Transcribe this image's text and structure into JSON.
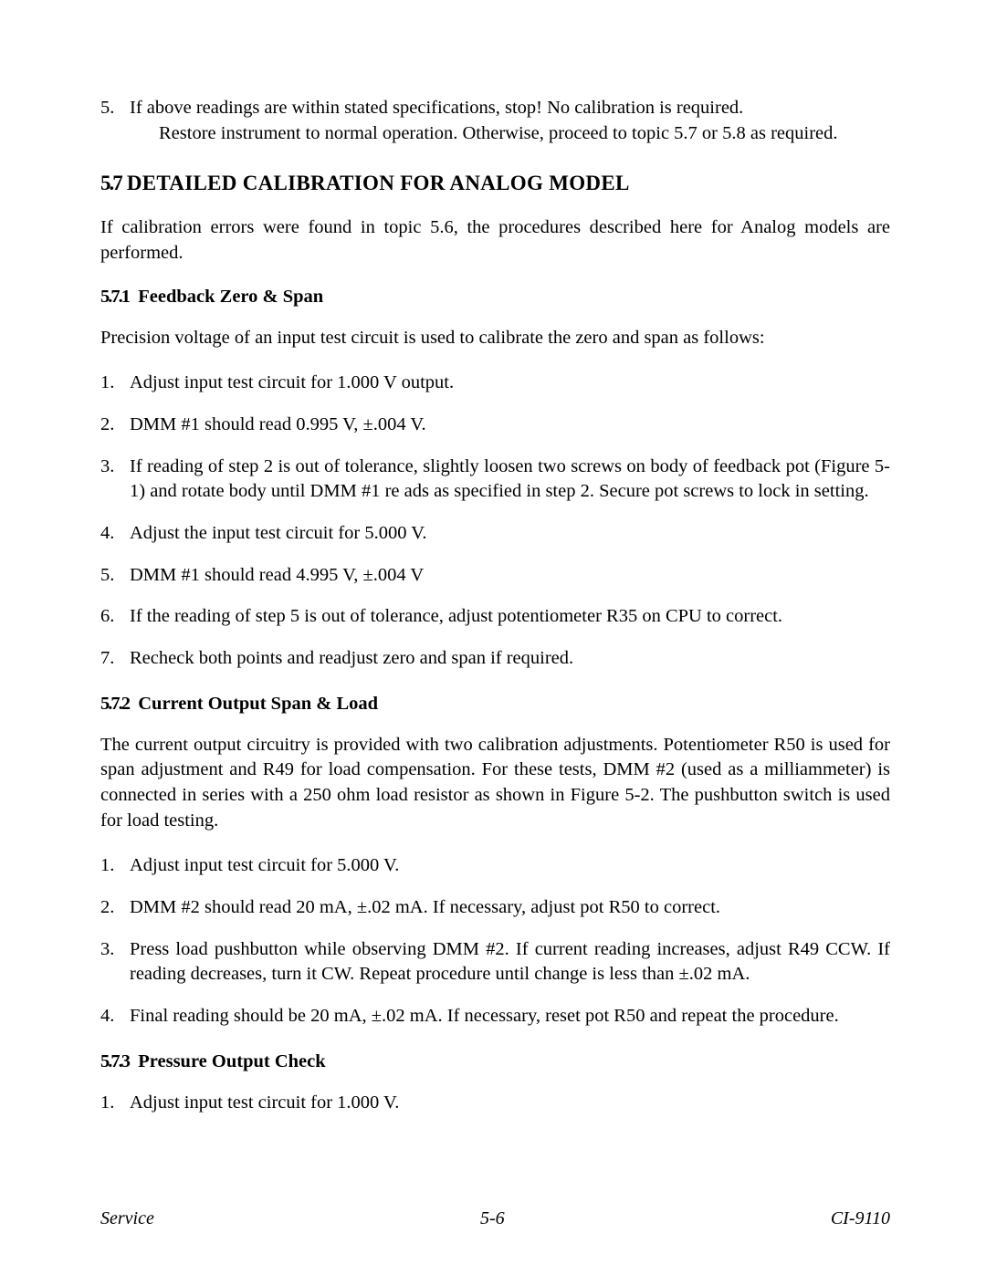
{
  "top_item": {
    "num": "5.",
    "line1": "If above readings are within stated specifications, stop! No calibration is required.",
    "line2": "Restore instrument to normal operation. Otherwise, proceed to topic 5.7 or 5.8 as required."
  },
  "section": {
    "num": "5.7",
    "title": "DETAILED CALIBRATION FOR ANALOG MODEL",
    "intro": "If calibration errors were found in topic 5.6, the procedures described here for Analog models are performed."
  },
  "s571": {
    "num": "5.7.1",
    "title": "Feedback Zero & Span",
    "intro": "Precision voltage of an input test circuit is used to calibrate the zero and span as follows:",
    "steps": [
      "Adjust input test circuit for 1.000 V output.",
      "DMM #1 should read 0.995 V,  ±.004 V.",
      "If reading of step 2 is out of tolerance, slightly loosen two screws on body of feedback pot (Figure 5-1) and rotate body until DMM #1 re ads as specified in step 2. Secure pot screws to lock in setting.",
      "Adjust the input test circuit for 5.000 V.",
      "DMM #1 should read 4.995 V,  ±.004 V",
      "If the reading of step 5 is out of tolerance, adjust potentiometer R35 on CPU to correct.",
      "Recheck both points and readjust zero and span if required."
    ]
  },
  "s572": {
    "num": "5.7.2",
    "title": "Current Output Span & Load",
    "intro": "The current output circuitry is provided with two calibration adjustments. Potentiometer R50 is used for span adjustment and R49 for load compensation. For these tests, DMM #2 (used as a milliammeter) is connected in series with a 250 ohm load resistor as shown in Figure 5-2. The pushbutton switch is used for load testing.",
    "steps": [
      "Adjust input test circuit for 5.000 V.",
      "DMM #2 should read 20 mA,  ±.02 mA. If necessary, adjust pot R50 to correct.",
      "Press load pushbutton while observing DMM #2. If current reading increases, adjust R49 CCW. If reading decreases, turn it CW. Repeat procedure until change is less than ±.02 mA.",
      "Final reading should be 20 mA, ±.02 mA. If necessary, reset pot R50 and repeat the procedure."
    ]
  },
  "s573": {
    "num": "5.7.3",
    "title": "Pressure Output Check",
    "steps": [
      "Adjust input test circuit for 1.000 V."
    ]
  },
  "footer": {
    "left": "Service",
    "center": "5-6",
    "right": "CI-9110"
  }
}
